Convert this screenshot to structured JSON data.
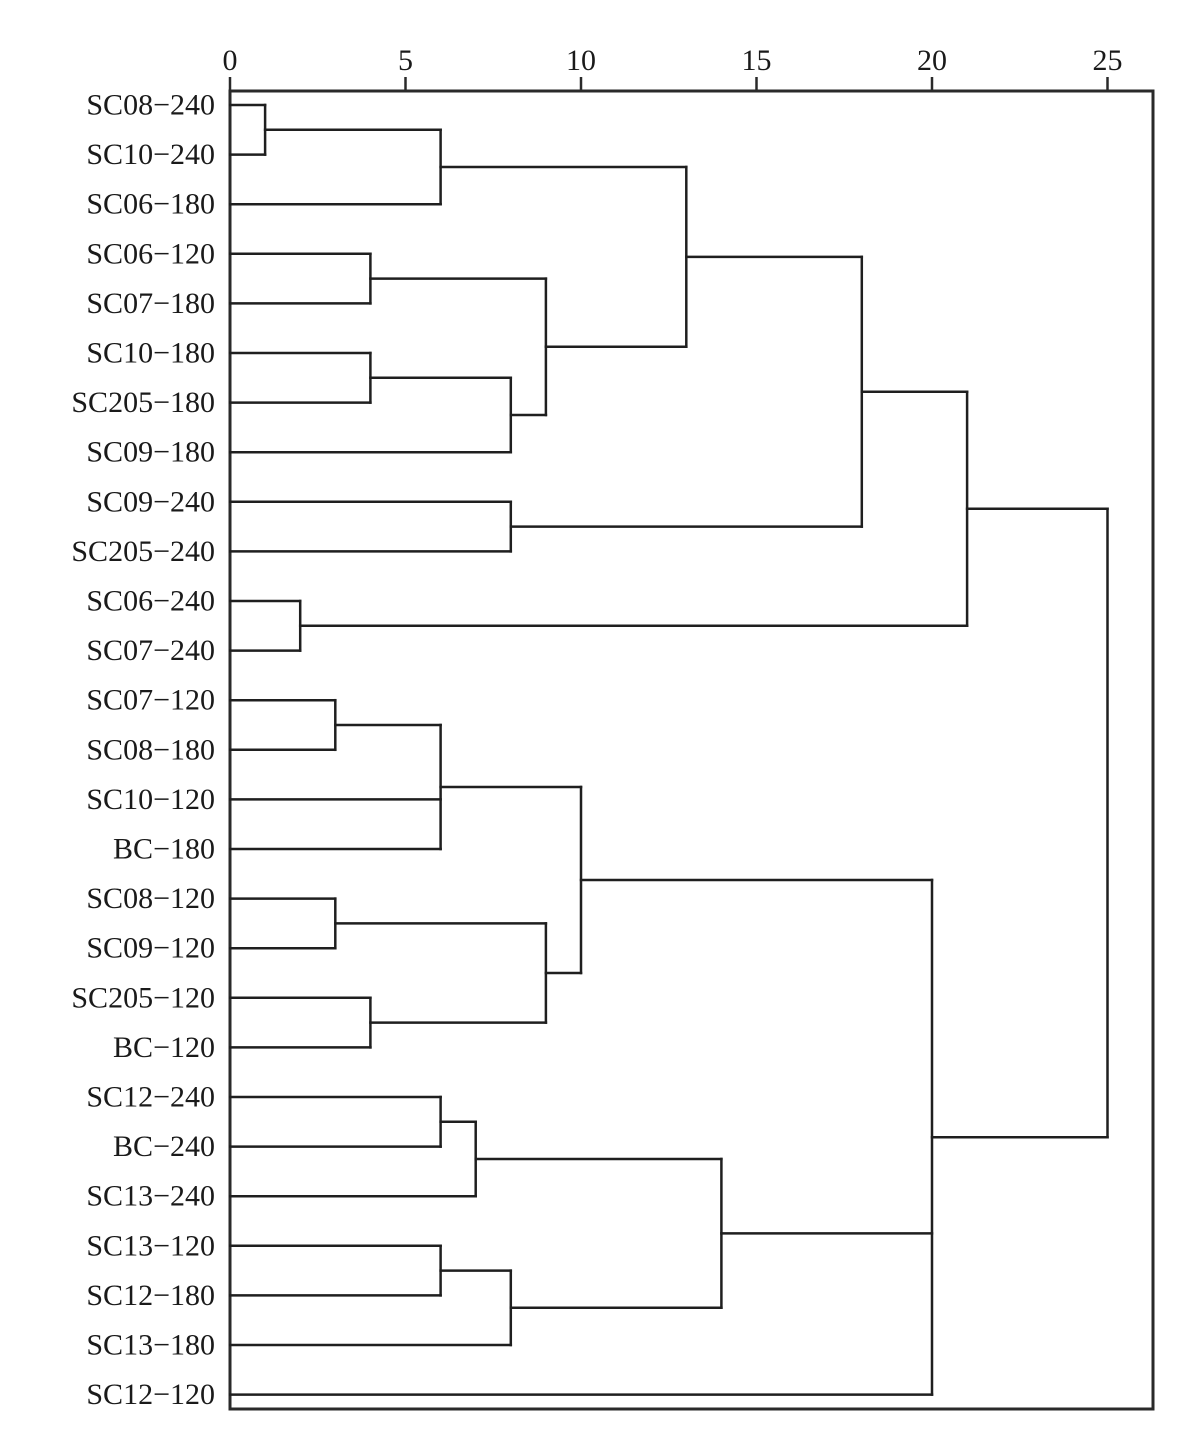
{
  "chart_data": {
    "type": "dendrogram",
    "title": "",
    "xlabel": "",
    "ylabel": "",
    "xlim": [
      0,
      26.3
    ],
    "x_ticks": [
      0,
      5,
      10,
      15,
      20,
      25
    ],
    "x_tick_labels": [
      "0",
      "5",
      "10",
      "15",
      "20",
      "25"
    ],
    "orientation": "leaves-left",
    "grid": false,
    "leaves": [
      "SC08−240",
      "SC10−240",
      "SC06−180",
      "SC06−120",
      "SC07−180",
      "SC10−180",
      "SC205−180",
      "SC09−180",
      "SC09−240",
      "SC205−240",
      "SC06−240",
      "SC07−240",
      "SC07−120",
      "SC08−180",
      "SC10−120",
      "BC−180",
      "SC08−120",
      "SC09−120",
      "SC205−120",
      "BC−120",
      "SC12−240",
      "BC−240",
      "SC13−240",
      "SC13−120",
      "SC12−180",
      "SC13−180",
      "SC12−120"
    ],
    "merges": [
      {
        "id": "A",
        "children": [
          "L0",
          "L1"
        ],
        "height": 1
      },
      {
        "id": "B",
        "children": [
          "A",
          "L2"
        ],
        "height": 6
      },
      {
        "id": "C",
        "children": [
          "L3",
          "L4"
        ],
        "height": 4
      },
      {
        "id": "D",
        "children": [
          "L5",
          "L6"
        ],
        "height": 4
      },
      {
        "id": "E",
        "children": [
          "D",
          "L7"
        ],
        "height": 8
      },
      {
        "id": "F",
        "children": [
          "C",
          "E"
        ],
        "height": 9
      },
      {
        "id": "G",
        "children": [
          "B",
          "F"
        ],
        "height": 13
      },
      {
        "id": "H",
        "children": [
          "L8",
          "L9"
        ],
        "height": 8
      },
      {
        "id": "I",
        "children": [
          "G",
          "H"
        ],
        "height": 18
      },
      {
        "id": "J",
        "children": [
          "L10",
          "L11"
        ],
        "height": 2
      },
      {
        "id": "K",
        "children": [
          "I",
          "J"
        ],
        "height": 21
      },
      {
        "id": "L",
        "children": [
          "L12",
          "L13"
        ],
        "height": 3
      },
      {
        "id": "M",
        "children": [
          "L",
          "L14",
          "L15"
        ],
        "height": 6
      },
      {
        "id": "N",
        "children": [
          "L16",
          "L17"
        ],
        "height": 3
      },
      {
        "id": "O",
        "children": [
          "L18",
          "L19"
        ],
        "height": 4
      },
      {
        "id": "P",
        "children": [
          "N",
          "O"
        ],
        "height": 9
      },
      {
        "id": "Q",
        "children": [
          "M",
          "P"
        ],
        "height": 10
      },
      {
        "id": "R",
        "children": [
          "L20",
          "L21"
        ],
        "height": 6
      },
      {
        "id": "S",
        "children": [
          "R",
          "L22"
        ],
        "height": 7
      },
      {
        "id": "T",
        "children": [
          "L23",
          "L24"
        ],
        "height": 6
      },
      {
        "id": "U",
        "children": [
          "T",
          "L25"
        ],
        "height": 8
      },
      {
        "id": "V",
        "children": [
          "S",
          "U"
        ],
        "height": 14
      },
      {
        "id": "W",
        "children": [
          "Q",
          "V",
          "L26"
        ],
        "height": 20
      },
      {
        "id": "X",
        "children": [
          "K",
          "W"
        ],
        "height": 25
      }
    ]
  }
}
